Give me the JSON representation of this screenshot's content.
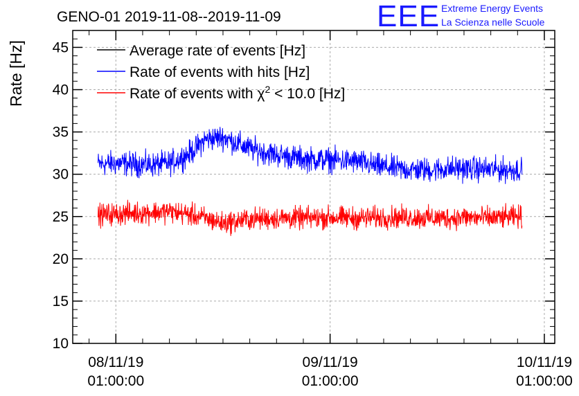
{
  "title": "GENO-01 2019-11-08--2019-11-09",
  "logo": {
    "mark": "EEE",
    "line1": "Extreme Energy Events",
    "line2": "La Scienza nelle Scuole"
  },
  "colors": {
    "average": "#000000",
    "hits": "#0000ff",
    "chi2": "#ff0000",
    "grid": "#aaaaaa"
  },
  "chart_data": {
    "type": "line",
    "title": "GENO-01 2019-11-08--2019-11-09",
    "xlabel": "",
    "ylabel": "Rate [Hz]",
    "xlim": [
      "2019-11-07T20:10",
      "2019-11-10T02:10"
    ],
    "ylim": [
      10,
      47
    ],
    "grid": true,
    "legend_position": "top-left",
    "x_ticks": [
      {
        "value": "2019-11-08T01:00",
        "line1": "08/11/19",
        "line2": "01:00:00"
      },
      {
        "value": "2019-11-09T01:00",
        "line1": "09/11/19",
        "line2": "01:00:00"
      },
      {
        "value": "2019-11-10T01:00",
        "line1": "10/11/19",
        "line2": "01:00:00"
      }
    ],
    "y_ticks": [
      10,
      15,
      20,
      25,
      30,
      35,
      40,
      45
    ],
    "legend": [
      {
        "key": "average",
        "label": "Average rate of events [Hz]",
        "label_prefix": "",
        "sup": "",
        "label_suffix": ""
      },
      {
        "key": "hits",
        "label": "Rate of events with hits [Hz]",
        "label_prefix": "",
        "sup": "",
        "label_suffix": ""
      },
      {
        "key": "chi2",
        "label": "Rate of events with χ2 < 10.0 [Hz]",
        "label_prefix": "Rate of events with χ",
        "sup": "2",
        "label_suffix": " < 10.0 [Hz]"
      }
    ],
    "series": [
      {
        "name": "Rate of events with hits [Hz]",
        "key": "hits",
        "x": [
          "2019-11-07T23:00",
          "2019-11-08T01:00",
          "2019-11-08T03:00",
          "2019-11-08T05:00",
          "2019-11-08T07:00",
          "2019-11-08T08:00",
          "2019-11-08T09:00",
          "2019-11-08T10:00",
          "2019-11-08T11:00",
          "2019-11-08T13:00",
          "2019-11-08T16:00",
          "2019-11-08T19:00",
          "2019-11-08T22:00",
          "2019-11-09T01:00",
          "2019-11-09T04:00",
          "2019-11-09T06:00",
          "2019-11-09T09:00",
          "2019-11-09T12:00",
          "2019-11-09T15:00",
          "2019-11-09T18:00",
          "2019-11-09T21:00",
          "2019-11-09T22:30"
        ],
        "values": [
          31.2,
          31.3,
          31.2,
          31.1,
          31.3,
          31.8,
          32.3,
          33.1,
          34.1,
          34.4,
          33.0,
          32.3,
          31.8,
          31.7,
          31.5,
          31.0,
          30.6,
          30.5,
          30.7,
          30.6,
          30.5,
          30.6
        ],
        "noise": 1.1
      },
      {
        "name": "Rate of events with χ2 < 10.0 [Hz]",
        "key": "chi2",
        "x": [
          "2019-11-07T23:00",
          "2019-11-08T01:00",
          "2019-11-08T03:00",
          "2019-11-08T05:00",
          "2019-11-08T07:00",
          "2019-11-08T09:00",
          "2019-11-08T11:00",
          "2019-11-08T13:00",
          "2019-11-08T16:00",
          "2019-11-08T19:00",
          "2019-11-08T22:00",
          "2019-11-09T01:00",
          "2019-11-09T04:00",
          "2019-11-09T07:00",
          "2019-11-09T10:00",
          "2019-11-09T13:00",
          "2019-11-09T16:00",
          "2019-11-09T19:00",
          "2019-11-09T22:30"
        ],
        "values": [
          25.2,
          25.3,
          25.4,
          25.5,
          25.6,
          25.3,
          24.8,
          24.2,
          24.7,
          24.8,
          24.8,
          24.9,
          24.8,
          24.9,
          24.9,
          24.8,
          24.9,
          24.8,
          25.0
        ],
        "noise": 1.0
      }
    ]
  }
}
